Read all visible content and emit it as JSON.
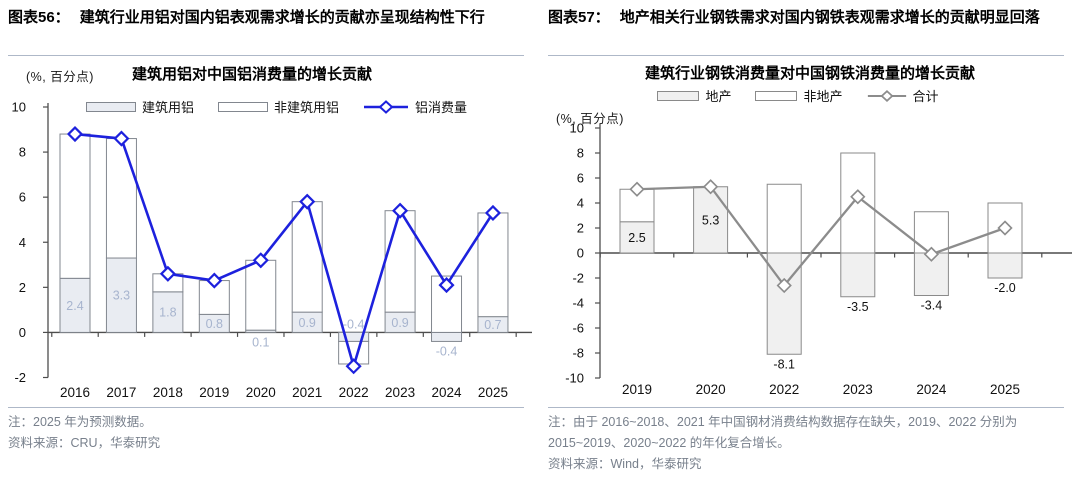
{
  "figures": [
    {
      "label": "图表56：",
      "heading": "建筑行业用铝对国内铝表观需求增长的贡献亦呈现结构性下行",
      "note": "注：2025 年为预测数据。",
      "source": "资料来源：CRU，华泰研究"
    },
    {
      "label": "图表57：",
      "heading": "地产相关行业钢铁需求对国内钢铁表观需求增长的贡献明显回落",
      "note": "注：由于 2016~2018、2021 年中国钢材消费结构数据存在缺失，2019、2022 分别为 2015~2019、2020~2022 的年化复合增长。",
      "source": "资料来源：Wind，华泰研究"
    }
  ],
  "chart_data": [
    {
      "type": "bar",
      "subtype": "stacked-bars-with-line-overlay",
      "title": "建筑用铝对中国铝消费量的增长贡献",
      "unit_label": "(%, 百分点)",
      "categories": [
        "2016",
        "2017",
        "2018",
        "2019",
        "2020",
        "2021",
        "2022",
        "2023",
        "2024",
        "2025"
      ],
      "series": [
        {
          "name": "建筑用铝",
          "type": "bar",
          "values": [
            2.4,
            3.3,
            1.8,
            0.8,
            0.1,
            0.9,
            -0.4,
            0.9,
            -0.4,
            0.7
          ],
          "fill": "#e9ecf2",
          "stroke": "#82878f",
          "data_labels": true,
          "label_color": "#a7b4ce"
        },
        {
          "name": "非建筑用铝",
          "type": "bar",
          "values": [
            6.4,
            5.3,
            0.8,
            1.5,
            3.1,
            4.9,
            -1.0,
            4.5,
            2.5,
            4.6
          ],
          "fill": "#ffffff",
          "stroke": "#82878f"
        },
        {
          "name": "铝消费量",
          "type": "line",
          "values": [
            8.8,
            8.6,
            2.6,
            2.3,
            3.2,
            5.8,
            -1.5,
            5.4,
            2.1,
            5.3
          ],
          "color": "#1d21dd"
        }
      ],
      "ylim": [
        -2,
        10
      ],
      "ytick_step": 2,
      "grid": false,
      "legend_position": "top",
      "label_placement": [
        "inside",
        "inside",
        "inside",
        "inside",
        "below_axis",
        "inside",
        "above_axis",
        "inside",
        "below_bar",
        "inside"
      ]
    },
    {
      "type": "bar",
      "subtype": "stacked-bars-with-line-overlay",
      "title": "建筑行业钢铁消费量对中国钢铁消费量的增长贡献",
      "unit_label": "(%, 百分点)",
      "categories": [
        "2019",
        "2020",
        "2022",
        "2023",
        "2024",
        "2025"
      ],
      "series": [
        {
          "name": "地产",
          "type": "bar",
          "values": [
            2.5,
            5.3,
            -8.1,
            -3.5,
            -3.4,
            -2.0
          ],
          "fill": "#f0f0f0",
          "stroke": "#8a8a8a",
          "data_labels": true,
          "label_color": "#111111"
        },
        {
          "name": "非地产",
          "type": "bar",
          "values": [
            2.6,
            0.0,
            5.5,
            8.0,
            3.3,
            4.0
          ],
          "fill": "#ffffff",
          "stroke": "#8a8a8a"
        },
        {
          "name": "合计",
          "type": "line",
          "values": [
            5.1,
            5.3,
            -2.6,
            4.5,
            -0.1,
            2.0
          ],
          "color": "#8c8c8c"
        }
      ],
      "ylim": [
        -10,
        10
      ],
      "ytick_step": 2,
      "grid": false,
      "legend_position": "top",
      "label_placement": [
        "inside",
        "inside",
        "below_bar",
        "below_bar",
        "below_bar",
        "below_bar"
      ]
    }
  ]
}
